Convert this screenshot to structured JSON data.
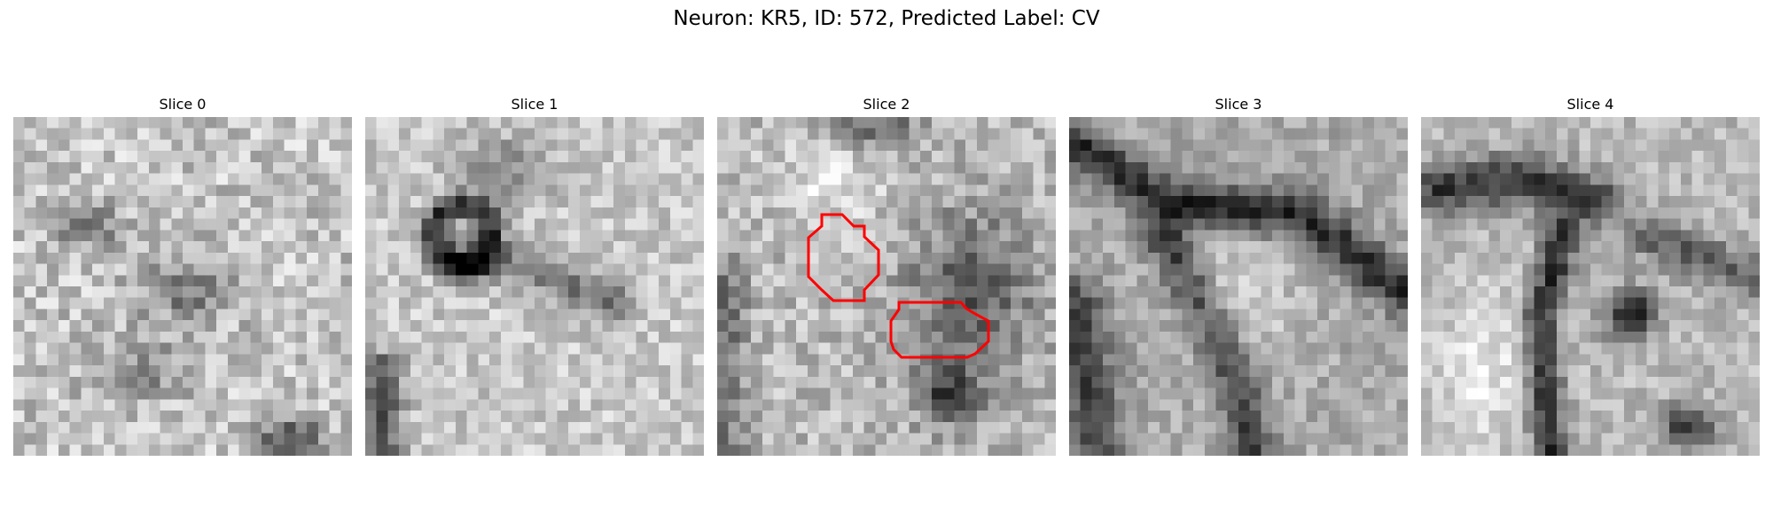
{
  "figure": {
    "title": "Neuron: KR5, ID: 572, Predicted Label: CV"
  },
  "slices": [
    {
      "title": "Slice 0"
    },
    {
      "title": "Slice 1"
    },
    {
      "title": "Slice 2"
    },
    {
      "title": "Slice 3"
    },
    {
      "title": "Slice 4"
    }
  ],
  "colors": {
    "background": "#ffffff",
    "contour": "#ff0000",
    "colormap": "grayscale"
  }
}
